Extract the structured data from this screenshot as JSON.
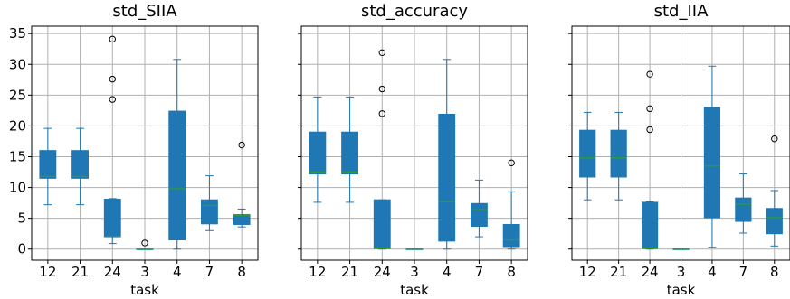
{
  "chart_data": {
    "type": "box",
    "categories": [
      "12",
      "21",
      "24",
      "3",
      "4",
      "7",
      "8"
    ],
    "xlabel": "task",
    "ylim": [
      -1.8,
      36.2
    ],
    "yticks": [
      0,
      5,
      10,
      15,
      20,
      25,
      30,
      35
    ],
    "grid": true,
    "box_color": "#1f77b4",
    "median_color": "#2ca02c",
    "whisker_color": "#1f77b4",
    "panels": [
      {
        "title": "std_SIIA",
        "boxes": [
          {
            "q1": 11.5,
            "median": 11.8,
            "q3": 16.0,
            "whislo": 7.2,
            "whishi": 19.6,
            "fliers": []
          },
          {
            "q1": 11.5,
            "median": 11.8,
            "q3": 16.0,
            "whislo": 7.2,
            "whishi": 19.6,
            "fliers": []
          },
          {
            "q1": 2.0,
            "median": 2.1,
            "q3": 8.1,
            "whislo": 0.9,
            "whishi": 8.2,
            "fliers": [
              24.3,
              27.6,
              34.1
            ]
          },
          {
            "q1": 0.0,
            "median": 0.0,
            "q3": 0.0,
            "whislo": 0.0,
            "whishi": 0.0,
            "fliers": [
              1.0
            ]
          },
          {
            "q1": 1.5,
            "median": 9.8,
            "q3": 22.4,
            "whislo": 0.0,
            "whishi": 30.8,
            "fliers": []
          },
          {
            "q1": 4.1,
            "median": 7.1,
            "q3": 8.0,
            "whislo": 3.0,
            "whishi": 11.9,
            "fliers": []
          },
          {
            "q1": 4.0,
            "median": 5.5,
            "q3": 5.6,
            "whislo": 3.6,
            "whishi": 6.5,
            "fliers": [
              16.9
            ]
          }
        ]
      },
      {
        "title": "std_accuracy",
        "boxes": [
          {
            "q1": 12.2,
            "median": 12.5,
            "q3": 19.0,
            "whislo": 7.6,
            "whishi": 24.7,
            "fliers": []
          },
          {
            "q1": 12.2,
            "median": 12.5,
            "q3": 19.0,
            "whislo": 7.6,
            "whishi": 24.7,
            "fliers": []
          },
          {
            "q1": 0.1,
            "median": 0.2,
            "q3": 8.0,
            "whislo": 0.0,
            "whishi": 8.0,
            "fliers": [
              22.0,
              26.0,
              31.9
            ]
          },
          {
            "q1": 0.0,
            "median": 0.0,
            "q3": 0.0,
            "whislo": 0.0,
            "whishi": 0.0,
            "fliers": []
          },
          {
            "q1": 1.3,
            "median": 7.7,
            "q3": 21.9,
            "whislo": 0.0,
            "whishi": 30.8,
            "fliers": []
          },
          {
            "q1": 3.7,
            "median": 6.4,
            "q3": 7.4,
            "whislo": 2.0,
            "whishi": 11.2,
            "fliers": []
          },
          {
            "q1": 0.4,
            "median": 1.5,
            "q3": 4.0,
            "whislo": 0.0,
            "whishi": 9.3,
            "fliers": [
              14.0
            ]
          }
        ]
      },
      {
        "title": "std_IIA",
        "boxes": [
          {
            "q1": 11.7,
            "median": 14.8,
            "q3": 19.3,
            "whislo": 8.0,
            "whishi": 22.2,
            "fliers": []
          },
          {
            "q1": 11.7,
            "median": 14.8,
            "q3": 19.3,
            "whislo": 8.0,
            "whishi": 22.2,
            "fliers": []
          },
          {
            "q1": 0.1,
            "median": 0.2,
            "q3": 7.6,
            "whislo": 0.0,
            "whishi": 7.7,
            "fliers": [
              19.4,
              22.8,
              28.4
            ]
          },
          {
            "q1": 0.0,
            "median": 0.0,
            "q3": 0.0,
            "whislo": 0.0,
            "whishi": 0.0,
            "fliers": []
          },
          {
            "q1": 5.1,
            "median": 13.5,
            "q3": 23.0,
            "whislo": 0.3,
            "whishi": 29.7,
            "fliers": []
          },
          {
            "q1": 4.5,
            "median": 7.3,
            "q3": 8.3,
            "whislo": 2.6,
            "whishi": 12.2,
            "fliers": []
          },
          {
            "q1": 2.5,
            "median": 5.1,
            "q3": 6.6,
            "whislo": 0.5,
            "whishi": 9.5,
            "fliers": [
              17.9
            ]
          }
        ]
      }
    ]
  }
}
